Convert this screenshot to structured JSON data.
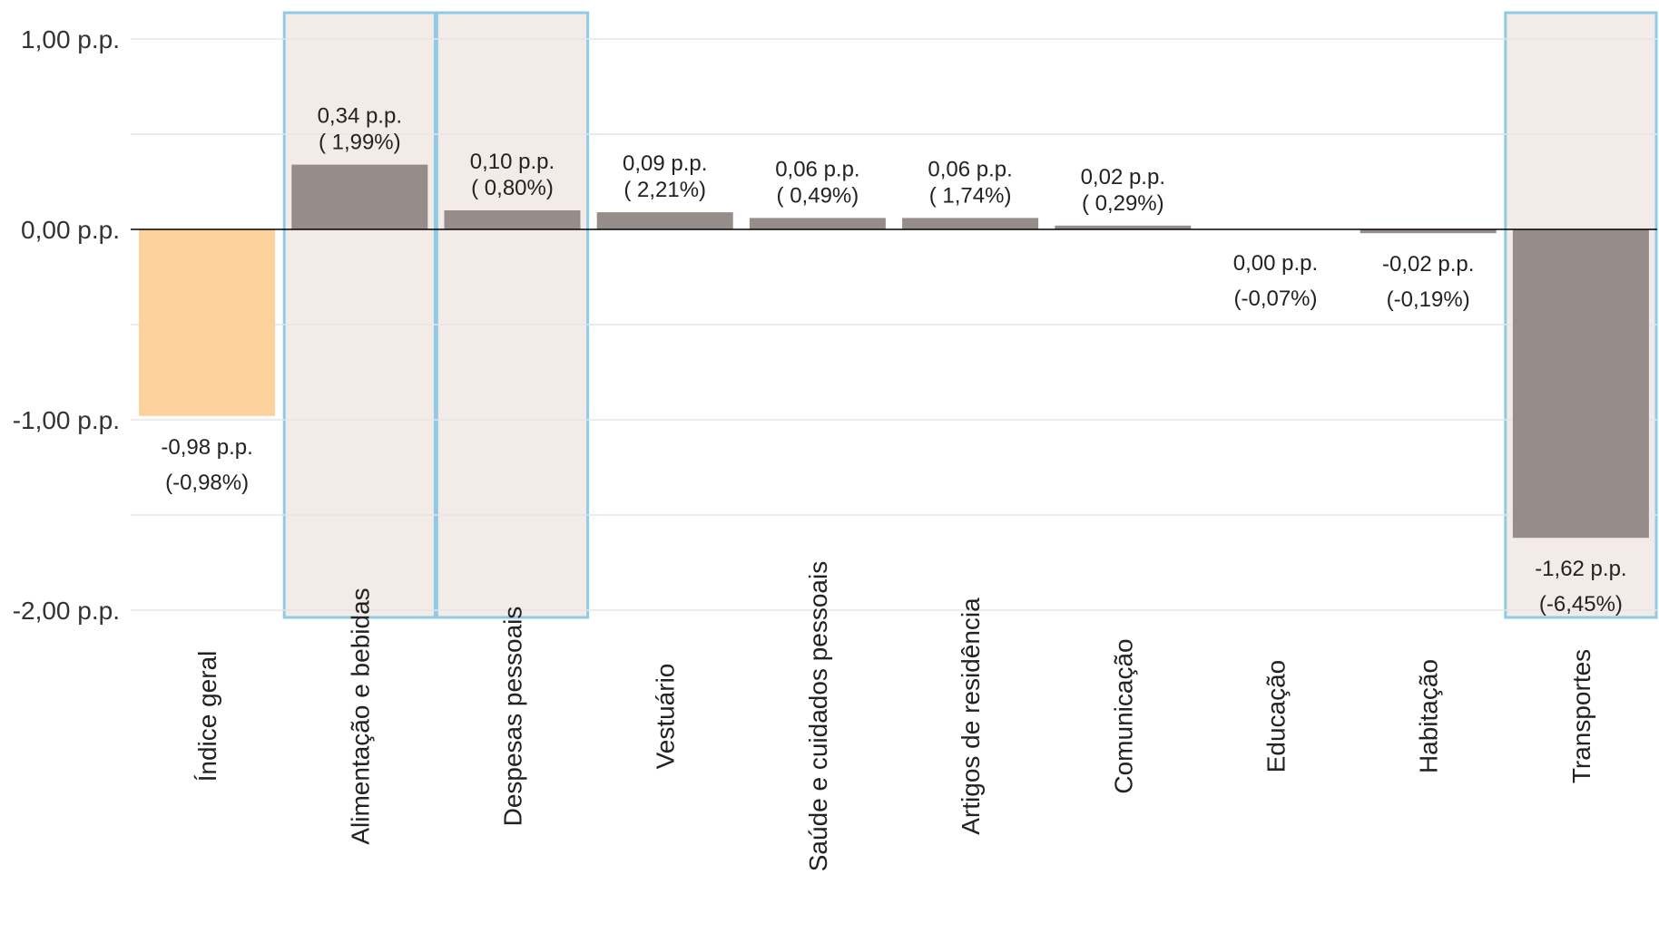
{
  "chart_data": {
    "type": "bar",
    "title": "",
    "xlabel": "",
    "ylabel": "",
    "ylim": [
      -2.05,
      1.15
    ],
    "yticks": [
      {
        "value": 1,
        "label": "1,00 p.p."
      },
      {
        "value": 0,
        "label": "0,00 p.p."
      },
      {
        "value": -1,
        "label": "-1,00 p.p."
      },
      {
        "value": -2,
        "label": "-2,00 p.p."
      }
    ],
    "grid": true,
    "legend": "none",
    "categories": [
      "Índice geral",
      "Alimentação e bebidas",
      "Despesas pessoais",
      "Vestuário",
      "Saúde e cuidados pessoais",
      "Artigos de residência",
      "Comunicação",
      "Educação",
      "Habitação",
      "Transportes"
    ],
    "values": [
      -0.98,
      0.34,
      0.1,
      0.09,
      0.06,
      0.06,
      0.02,
      0.0,
      -0.02,
      -1.62
    ],
    "value_labels": [
      "-0,98 p.p.",
      "0,34 p.p.",
      "0,10 p.p.",
      "0,09 p.p.",
      "0,06 p.p.",
      "0,06 p.p.",
      "0,02 p.p.",
      "0,00 p.p.",
      "-0,02 p.p.",
      "-1,62 p.p."
    ],
    "pct_labels": [
      "(-0,98%)",
      "( 1,99%)",
      "( 0,80%)",
      "( 2,21%)",
      "( 0,49%)",
      "( 1,74%)",
      "( 0,29%)",
      "(-0,07%)",
      "(-0,19%)",
      "(-6,45%)"
    ],
    "highlighted": [
      "Alimentação e bebidas",
      "Despesas pessoais",
      "Transportes"
    ],
    "colors": {
      "index_bar": "#fdd19b",
      "group_bar": "#968c8a",
      "highlight_fill": "#f2ebe8",
      "highlight_border": "#8fcbe6",
      "grid": "#e6e6e6",
      "zero_line": "#000000"
    }
  }
}
